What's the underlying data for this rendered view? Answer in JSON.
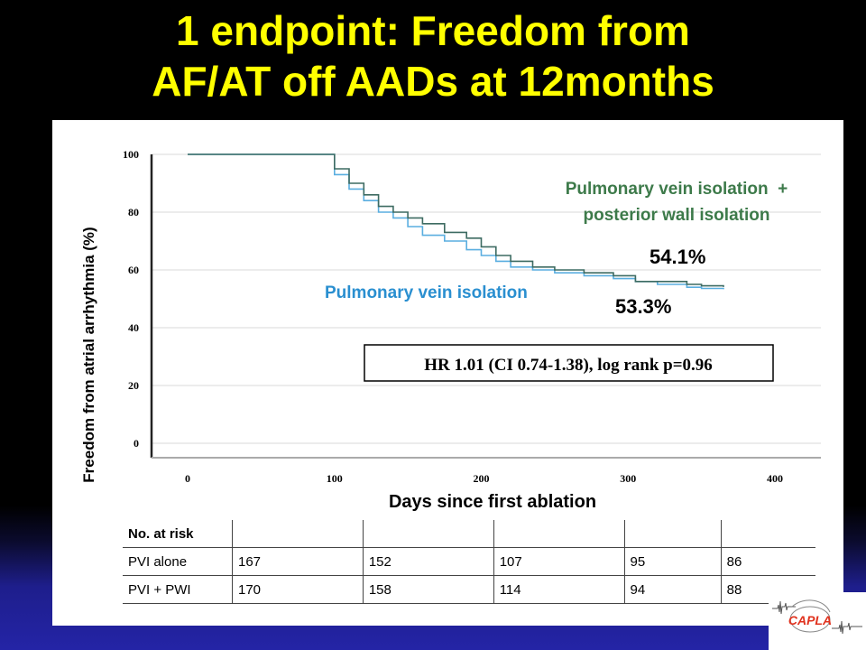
{
  "slide": {
    "title_line1": "1 endpoint: Freedom from",
    "title_line2": "AF/AT off AADs at 12months"
  },
  "chart_data": {
    "type": "line",
    "title": "",
    "xlabel": "Days since first ablation",
    "ylabel": "Freedom from atrial arrhythmia (%)",
    "xlim": [
      0,
      400
    ],
    "ylim": [
      0,
      100
    ],
    "x_ticks": [
      "0",
      "100",
      "200",
      "300",
      "400"
    ],
    "y_ticks": [
      "0",
      "20",
      "40",
      "60",
      "80",
      "100"
    ],
    "grid": true,
    "series": [
      {
        "name": "Pulmonary vein isolation + posterior wall isolation",
        "label_line1": "Pulmonary vein isolation  +",
        "label_line2": "posterior wall isolation",
        "color": "#3d6b62",
        "end_value": "54.1%",
        "x": [
          0,
          75,
          95,
          100,
          110,
          120,
          130,
          140,
          150,
          160,
          175,
          190,
          200,
          210,
          220,
          235,
          250,
          270,
          290,
          305,
          320,
          340,
          350,
          365
        ],
        "y": [
          100,
          100,
          100,
          95,
          90,
          86,
          82,
          80,
          78,
          76,
          73,
          71,
          68,
          65,
          63,
          61,
          60,
          59,
          58,
          56,
          56,
          55,
          54.5,
          54.1
        ]
      },
      {
        "name": "Pulmonary vein isolation",
        "label": "Pulmonary vein isolation",
        "color": "#5aaee0",
        "end_value": "53.3%",
        "x": [
          0,
          75,
          95,
          100,
          110,
          120,
          130,
          140,
          150,
          160,
          175,
          190,
          200,
          210,
          220,
          235,
          250,
          270,
          290,
          305,
          320,
          340,
          350,
          365
        ],
        "y": [
          100,
          100,
          100,
          93,
          88,
          84,
          80,
          78,
          75,
          72,
          70,
          67,
          65,
          63,
          61,
          60,
          59,
          58,
          57,
          56,
          55,
          54,
          53.6,
          53.3
        ]
      }
    ],
    "annotation": "HR 1.01 (CI 0.74-1.38), log rank p=0.96"
  },
  "risk_table": {
    "header": "No. at risk",
    "rows": [
      {
        "label": "PVI alone",
        "values": [
          "167",
          "152",
          "107",
          "95",
          "86"
        ]
      },
      {
        "label": "PVI + PWI",
        "values": [
          "170",
          "158",
          "114",
          "94",
          "88"
        ]
      }
    ]
  },
  "logo": {
    "text": "CAPLA",
    "color": "#e0321e"
  }
}
